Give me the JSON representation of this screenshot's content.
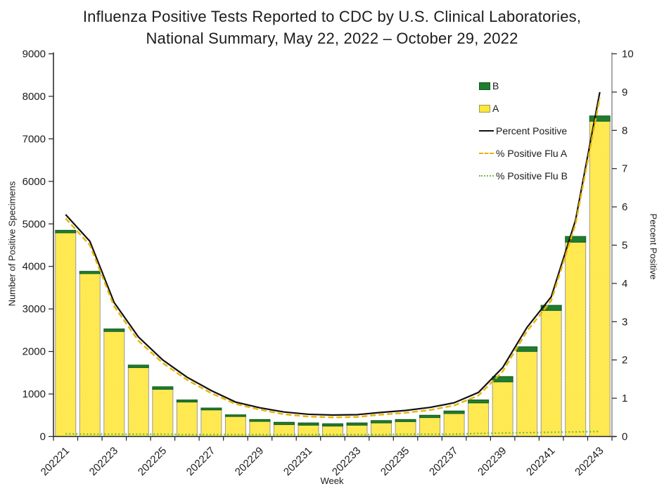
{
  "title": {
    "line1": "Influenza Positive Tests Reported to CDC by U.S. Clinical Laboratories,",
    "line2": "National Summary, May 22, 2022 – October 29, 2022"
  },
  "chart_data": {
    "type": "bar",
    "subtype": "stacked-bars-with-percent-lines",
    "x_label": "Week",
    "y_left": {
      "label": "Number of Positive Specimens",
      "min": 0,
      "max": 9000,
      "step": 1000,
      "ticks": [
        0,
        1000,
        2000,
        3000,
        4000,
        5000,
        6000,
        7000,
        8000,
        9000
      ]
    },
    "y_right": {
      "label": "Percent Positive",
      "min": 0,
      "max": 10,
      "step": 1,
      "ticks": [
        0,
        1,
        2,
        3,
        4,
        5,
        6,
        7,
        8,
        9,
        10
      ]
    },
    "weeks": [
      "202221",
      "202222",
      "202223",
      "202224",
      "202225",
      "202226",
      "202227",
      "202228",
      "202229",
      "202230",
      "202231",
      "202232",
      "202233",
      "202234",
      "202235",
      "202236",
      "202237",
      "202238",
      "202239",
      "202240",
      "202241",
      "202242",
      "202243"
    ],
    "x_tick_labels": [
      "202221",
      "202223",
      "202225",
      "202227",
      "202229",
      "202231",
      "202233",
      "202235",
      "202237",
      "202239",
      "202241",
      "202243"
    ],
    "bar_series": [
      {
        "name": "A",
        "values": [
          4790,
          3830,
          2470,
          1620,
          1110,
          810,
          625,
          470,
          355,
          280,
          265,
          245,
          265,
          320,
          350,
          445,
          540,
          790,
          1285,
          2000,
          2965,
          4570,
          7415
        ]
      },
      {
        "name": "B",
        "values": [
          60,
          55,
          60,
          60,
          60,
          50,
          45,
          40,
          45,
          55,
          55,
          55,
          55,
          55,
          50,
          55,
          60,
          70,
          125,
          110,
          120,
          135,
          125
        ]
      }
    ],
    "line_series": [
      {
        "name": "Percent Positive",
        "style": "solid",
        "values": [
          5.8,
          5.1,
          3.5,
          2.6,
          2.0,
          1.55,
          1.2,
          0.9,
          0.75,
          0.64,
          0.58,
          0.56,
          0.57,
          0.63,
          0.68,
          0.76,
          0.88,
          1.15,
          1.8,
          2.85,
          3.65,
          5.65,
          9.0
        ]
      },
      {
        "name": "% Positive Flu A",
        "style": "dashed",
        "values": [
          5.7,
          5.0,
          3.4,
          2.5,
          1.92,
          1.48,
          1.13,
          0.85,
          0.7,
          0.58,
          0.52,
          0.5,
          0.51,
          0.57,
          0.62,
          0.69,
          0.81,
          1.07,
          1.7,
          2.75,
          3.55,
          5.55,
          8.85
        ]
      },
      {
        "name": "% Positive Flu B",
        "style": "dotted",
        "values": [
          0.07,
          0.06,
          0.06,
          0.06,
          0.06,
          0.05,
          0.05,
          0.05,
          0.05,
          0.05,
          0.05,
          0.05,
          0.05,
          0.05,
          0.06,
          0.06,
          0.06,
          0.08,
          0.09,
          0.1,
          0.11,
          0.12,
          0.13
        ]
      }
    ],
    "legend": [
      {
        "label": "B"
      },
      {
        "label": "A"
      },
      {
        "label": "Percent Positive"
      },
      {
        "label": "% Positive Flu A"
      },
      {
        "label": "% Positive Flu B"
      }
    ],
    "colors": {
      "flu_a_bar": "#FFE63C",
      "flu_a_bar_dot": "#FFFFFF",
      "flu_a_bar_border": "#9a9a9a",
      "flu_b_bar": "#1E7D2F",
      "flu_b_bar_border": "#145A20",
      "percent_positive_line": "#111111",
      "percent_flu_a_line": "#E8B500",
      "percent_flu_b_line": "#6DBE3B",
      "axis_color": "#222222",
      "right_axis_color": "#8c8c8c",
      "text_color": "#1a1a1a"
    },
    "layout": {
      "grid": false,
      "legend_position": "upper-right-inside"
    }
  }
}
